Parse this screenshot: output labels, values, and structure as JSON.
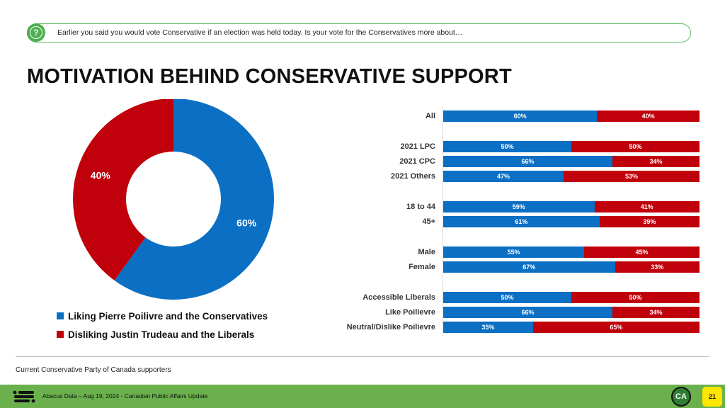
{
  "question": "Earlier you said you would vote Conservative if an election was held today.  Is your vote for the Conservatives more about…",
  "title": "MOTIVATION BEHIND CONSERVATIVE SUPPORT",
  "colors": {
    "blue": "#0b6fc4",
    "red": "#c0000a"
  },
  "chart_data": [
    {
      "type": "pie",
      "donut": true,
      "slices": [
        {
          "label": "Liking Pierre Poilivre and the Conservatives",
          "value": 60,
          "display": "60%",
          "color": "#0b6fc4"
        },
        {
          "label": "Disliking Justin Trudeau and the Liberals",
          "value": 40,
          "display": "40%",
          "color": "#c0000a"
        }
      ],
      "legend": "bottom-left"
    },
    {
      "type": "bar",
      "orientation": "horizontal",
      "stacked": true,
      "xlim": [
        0,
        100
      ],
      "categories": [
        "All",
        "2021 LPC",
        "2021 CPC",
        "2021 Others",
        "18 to 44",
        "45+",
        "Male",
        "Female",
        "Accessible Liberals",
        "Like Poilievre",
        "Neutral/Dislike Poilievre"
      ],
      "groups": [
        [
          0
        ],
        [
          1,
          2,
          3
        ],
        [
          4,
          5
        ],
        [
          6,
          7
        ],
        [
          8,
          9,
          10
        ]
      ],
      "series": [
        {
          "name": "Liking Pierre Poilivre and the Conservatives",
          "values": [
            60,
            50,
            66,
            47,
            59,
            61,
            55,
            67,
            50,
            66,
            35
          ],
          "color": "#0b6fc4"
        },
        {
          "name": "Disliking Justin Trudeau and the Liberals",
          "values": [
            40,
            50,
            34,
            53,
            41,
            39,
            45,
            33,
            50,
            34,
            65
          ],
          "color": "#c0000a"
        }
      ]
    }
  ],
  "footnote": "Current Conservative Party of Canada supporters",
  "footer": {
    "text": "Abacus Data – Aug 19, 2024 - Canadian Public Affairs Update",
    "badge": "CA",
    "page_number": "21"
  }
}
